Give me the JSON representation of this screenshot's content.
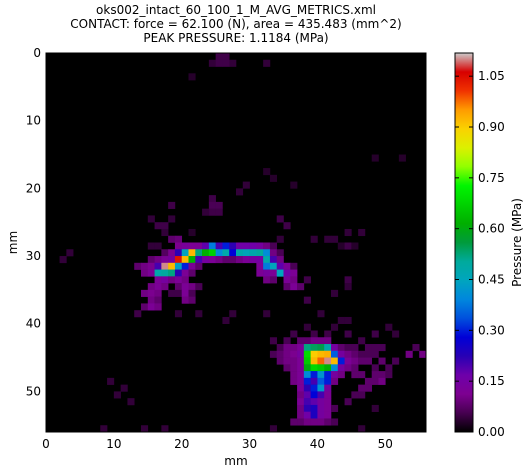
{
  "chart_data": {
    "type": "heatmap",
    "title_lines": [
      "oks002_intact_60_100_1_M_AVG_METRICS.xml",
      "CONTACT: force = 62.100 (N), area = 435.483 (mm^2)",
      "PEAK PRESSURE: 1.1184 (MPa)"
    ],
    "xlabel": "mm",
    "ylabel": "mm",
    "xlim": [
      0,
      56
    ],
    "ylim": [
      56,
      0
    ],
    "xticks": [
      0,
      10,
      20,
      30,
      40,
      50
    ],
    "yticks": [
      0,
      10,
      20,
      30,
      40,
      50
    ],
    "colorbar": {
      "label": "Pressure (MPa)",
      "min": 0.0,
      "max": 1.1184,
      "ticks": [
        "0.00",
        "0.15",
        "0.30",
        "0.45",
        "0.60",
        "0.75",
        "0.90",
        "1.05"
      ],
      "colormap": "nipy_spectral"
    },
    "background_color": "#000000",
    "cells": [
      [
        25,
        0,
        0.05
      ],
      [
        26,
        0,
        0.05
      ],
      [
        24,
        1,
        0.04
      ],
      [
        27,
        1,
        0.04
      ],
      [
        32,
        1,
        0.04
      ],
      [
        25,
        1,
        0.05
      ],
      [
        26,
        1,
        0.05
      ],
      [
        21,
        3,
        0.03
      ],
      [
        48,
        15,
        0.03
      ],
      [
        52,
        15,
        0.03
      ],
      [
        32,
        17,
        0.03
      ],
      [
        33,
        18,
        0.03
      ],
      [
        29,
        19,
        0.04
      ],
      [
        36,
        19,
        0.03
      ],
      [
        28,
        20,
        0.04
      ],
      [
        24,
        21,
        0.05
      ],
      [
        24,
        22,
        0.06
      ],
      [
        25,
        22,
        0.06
      ],
      [
        18,
        22,
        0.05
      ],
      [
        24,
        23,
        0.05
      ],
      [
        25,
        23,
        0.05
      ],
      [
        23,
        23,
        0.04
      ],
      [
        18,
        24,
        0.04
      ],
      [
        15,
        24,
        0.04
      ],
      [
        34,
        24,
        0.05
      ],
      [
        16,
        25,
        0.05
      ],
      [
        17,
        25,
        0.05
      ],
      [
        35,
        25,
        0.05
      ],
      [
        21,
        26,
        0.03
      ],
      [
        17,
        26,
        0.04
      ],
      [
        44,
        26,
        0.04
      ],
      [
        46,
        26,
        0.04
      ],
      [
        18,
        27,
        0.08
      ],
      [
        19,
        27,
        0.09
      ],
      [
        34,
        27,
        0.04
      ],
      [
        39,
        27,
        0.04
      ],
      [
        41,
        27,
        0.04
      ],
      [
        42,
        27,
        0.04
      ],
      [
        15,
        28,
        0.04
      ],
      [
        16,
        28,
        0.04
      ],
      [
        19,
        28,
        0.11
      ],
      [
        20,
        28,
        0.13
      ],
      [
        21,
        28,
        0.12
      ],
      [
        22,
        28,
        0.12
      ],
      [
        23,
        28,
        0.18
      ],
      [
        24,
        28,
        0.38
      ],
      [
        25,
        28,
        0.2
      ],
      [
        26,
        28,
        0.3
      ],
      [
        27,
        28,
        0.22
      ],
      [
        28,
        28,
        0.16
      ],
      [
        29,
        28,
        0.16
      ],
      [
        30,
        28,
        0.16
      ],
      [
        31,
        28,
        0.14
      ],
      [
        32,
        28,
        0.1
      ],
      [
        33,
        28,
        0.06
      ],
      [
        43,
        28,
        0.03
      ],
      [
        44,
        28,
        0.05
      ],
      [
        45,
        28,
        0.03
      ],
      [
        17,
        29,
        0.07
      ],
      [
        18,
        29,
        0.11
      ],
      [
        19,
        29,
        0.22
      ],
      [
        20,
        29,
        0.45
      ],
      [
        21,
        29,
        0.92
      ],
      [
        22,
        29,
        0.52
      ],
      [
        23,
        29,
        0.62
      ],
      [
        24,
        29,
        0.67
      ],
      [
        25,
        29,
        0.4
      ],
      [
        26,
        29,
        0.48
      ],
      [
        27,
        29,
        0.28
      ],
      [
        28,
        29,
        0.48
      ],
      [
        29,
        29,
        0.46
      ],
      [
        30,
        29,
        0.48
      ],
      [
        31,
        29,
        0.5
      ],
      [
        32,
        29,
        0.4
      ],
      [
        33,
        29,
        0.1
      ],
      [
        34,
        29,
        0.06
      ],
      [
        3,
        29,
        0.04
      ],
      [
        15,
        30,
        0.08
      ],
      [
        16,
        30,
        0.1
      ],
      [
        17,
        30,
        0.12
      ],
      [
        18,
        30,
        0.14
      ],
      [
        19,
        30,
        1.04
      ],
      [
        20,
        30,
        0.92
      ],
      [
        21,
        30,
        0.62
      ],
      [
        22,
        30,
        0.2
      ],
      [
        23,
        30,
        0.14
      ],
      [
        24,
        30,
        0.12
      ],
      [
        25,
        30,
        0.1
      ],
      [
        26,
        30,
        0.08
      ],
      [
        27,
        30,
        0.08
      ],
      [
        28,
        30,
        0.1
      ],
      [
        29,
        30,
        0.12
      ],
      [
        30,
        30,
        0.14
      ],
      [
        31,
        30,
        0.15
      ],
      [
        32,
        30,
        0.48
      ],
      [
        33,
        30,
        0.2
      ],
      [
        34,
        30,
        0.1
      ],
      [
        2,
        30,
        0.04
      ],
      [
        13,
        31,
        0.08
      ],
      [
        14,
        31,
        0.1
      ],
      [
        15,
        31,
        0.11
      ],
      [
        16,
        31,
        0.2
      ],
      [
        17,
        31,
        1.1
      ],
      [
        18,
        31,
        0.92
      ],
      [
        19,
        31,
        0.44
      ],
      [
        20,
        31,
        0.3
      ],
      [
        21,
        31,
        0.12
      ],
      [
        22,
        31,
        0.08
      ],
      [
        31,
        31,
        0.12
      ],
      [
        32,
        31,
        0.38
      ],
      [
        33,
        31,
        0.45
      ],
      [
        34,
        31,
        0.18
      ],
      [
        35,
        31,
        0.12
      ],
      [
        36,
        31,
        0.06
      ],
      [
        14,
        32,
        0.1
      ],
      [
        15,
        32,
        0.12
      ],
      [
        16,
        32,
        0.48
      ],
      [
        17,
        32,
        0.5
      ],
      [
        18,
        32,
        0.52
      ],
      [
        19,
        32,
        0.22
      ],
      [
        20,
        32,
        0.12
      ],
      [
        21,
        32,
        0.08
      ],
      [
        31,
        32,
        0.12
      ],
      [
        32,
        32,
        0.14
      ],
      [
        33,
        32,
        0.12
      ],
      [
        34,
        32,
        0.45
      ],
      [
        35,
        32,
        0.16
      ],
      [
        36,
        32,
        0.12
      ],
      [
        16,
        33,
        0.12
      ],
      [
        17,
        33,
        0.14
      ],
      [
        18,
        33,
        0.1
      ],
      [
        19,
        33,
        0.12
      ],
      [
        20,
        33,
        0.1
      ],
      [
        32,
        33,
        0.1
      ],
      [
        33,
        33,
        0.08
      ],
      [
        35,
        33,
        0.12
      ],
      [
        36,
        33,
        0.1
      ],
      [
        38,
        33,
        0.05
      ],
      [
        44,
        33,
        0.05
      ],
      [
        15,
        34,
        0.1
      ],
      [
        16,
        34,
        0.12
      ],
      [
        17,
        34,
        0.1
      ],
      [
        19,
        34,
        0.08
      ],
      [
        20,
        34,
        0.12
      ],
      [
        21,
        34,
        0.1
      ],
      [
        22,
        34,
        0.06
      ],
      [
        35,
        34,
        0.08
      ],
      [
        36,
        34,
        0.12
      ],
      [
        37,
        34,
        0.08
      ],
      [
        44,
        34,
        0.04
      ],
      [
        14,
        35,
        0.1
      ],
      [
        15,
        35,
        0.11
      ],
      [
        16,
        35,
        0.1
      ],
      [
        18,
        35,
        0.05
      ],
      [
        19,
        35,
        0.05
      ],
      [
        20,
        35,
        0.12
      ],
      [
        21,
        35,
        0.06
      ],
      [
        42,
        35,
        0.04
      ],
      [
        15,
        36,
        0.1
      ],
      [
        16,
        36,
        0.08
      ],
      [
        20,
        36,
        0.1
      ],
      [
        21,
        36,
        0.08
      ],
      [
        38,
        36,
        0.05
      ],
      [
        14,
        37,
        0.08
      ],
      [
        15,
        37,
        0.12
      ],
      [
        16,
        37,
        0.1
      ],
      [
        13,
        38,
        0.05
      ],
      [
        19,
        38,
        0.04
      ],
      [
        22,
        38,
        0.04
      ],
      [
        27,
        38,
        0.04
      ],
      [
        32,
        38,
        0.04
      ],
      [
        40,
        38,
        0.04
      ],
      [
        26,
        39,
        0.04
      ],
      [
        43,
        39,
        0.04
      ],
      [
        44,
        39,
        0.04
      ],
      [
        38,
        40,
        0.04
      ],
      [
        42,
        40,
        0.04
      ],
      [
        50,
        40,
        0.04
      ],
      [
        36,
        41,
        0.05
      ],
      [
        39,
        41,
        0.05
      ],
      [
        41,
        41,
        0.05
      ],
      [
        44,
        41,
        0.05
      ],
      [
        48,
        41,
        0.05
      ],
      [
        51,
        41,
        0.04
      ],
      [
        33,
        42,
        0.05
      ],
      [
        35,
        42,
        0.06
      ],
      [
        37,
        42,
        0.08
      ],
      [
        38,
        42,
        0.08
      ],
      [
        39,
        42,
        0.1
      ],
      [
        40,
        42,
        0.1
      ],
      [
        41,
        42,
        0.1
      ],
      [
        46,
        42,
        0.05
      ],
      [
        34,
        43,
        0.06
      ],
      [
        35,
        43,
        0.1
      ],
      [
        36,
        43,
        0.1
      ],
      [
        37,
        43,
        0.12
      ],
      [
        38,
        43,
        0.52
      ],
      [
        39,
        43,
        0.54
      ],
      [
        40,
        43,
        0.55
      ],
      [
        41,
        43,
        0.48
      ],
      [
        42,
        43,
        0.14
      ],
      [
        43,
        43,
        0.08
      ],
      [
        44,
        43,
        0.06
      ],
      [
        45,
        43,
        0.06
      ],
      [
        47,
        43,
        0.06
      ],
      [
        48,
        43,
        0.06
      ],
      [
        49,
        43,
        0.06
      ],
      [
        54,
        43,
        0.06
      ],
      [
        33,
        44,
        0.06
      ],
      [
        34,
        44,
        0.08
      ],
      [
        35,
        44,
        0.1
      ],
      [
        36,
        44,
        0.11
      ],
      [
        37,
        44,
        0.14
      ],
      [
        38,
        44,
        0.68
      ],
      [
        39,
        44,
        0.9
      ],
      [
        40,
        44,
        0.92
      ],
      [
        41,
        44,
        0.93
      ],
      [
        42,
        44,
        0.35
      ],
      [
        43,
        44,
        0.14
      ],
      [
        44,
        44,
        0.1
      ],
      [
        45,
        44,
        0.08
      ],
      [
        46,
        44,
        0.06
      ],
      [
        47,
        44,
        0.06
      ],
      [
        48,
        44,
        0.06
      ],
      [
        53,
        44,
        0.1
      ],
      [
        55,
        44,
        0.1
      ],
      [
        56,
        44,
        0.08
      ],
      [
        34,
        45,
        0.08
      ],
      [
        35,
        45,
        0.1
      ],
      [
        36,
        45,
        0.1
      ],
      [
        37,
        45,
        0.12
      ],
      [
        38,
        45,
        0.66
      ],
      [
        39,
        45,
        0.92
      ],
      [
        40,
        45,
        0.98
      ],
      [
        41,
        45,
        1.1
      ],
      [
        42,
        45,
        0.92
      ],
      [
        43,
        45,
        0.3
      ],
      [
        44,
        45,
        0.12
      ],
      [
        45,
        45,
        0.1
      ],
      [
        46,
        45,
        0.08
      ],
      [
        47,
        45,
        0.08
      ],
      [
        49,
        45,
        0.08
      ],
      [
        51,
        45,
        0.06
      ],
      [
        35,
        46,
        0.08
      ],
      [
        36,
        46,
        0.1
      ],
      [
        37,
        46,
        0.12
      ],
      [
        38,
        46,
        0.6
      ],
      [
        39,
        46,
        0.68
      ],
      [
        40,
        46,
        0.66
      ],
      [
        41,
        46,
        0.62
      ],
      [
        42,
        46,
        0.4
      ],
      [
        43,
        46,
        0.14
      ],
      [
        44,
        46,
        0.1
      ],
      [
        45,
        46,
        0.08
      ],
      [
        48,
        46,
        0.06
      ],
      [
        50,
        46,
        0.06
      ],
      [
        36,
        47,
        0.1
      ],
      [
        37,
        47,
        0.12
      ],
      [
        38,
        47,
        0.4
      ],
      [
        39,
        47,
        0.3
      ],
      [
        40,
        47,
        0.42
      ],
      [
        41,
        47,
        0.3
      ],
      [
        42,
        47,
        0.14
      ],
      [
        43,
        47,
        0.1
      ],
      [
        45,
        47,
        0.08
      ],
      [
        46,
        47,
        0.08
      ],
      [
        48,
        47,
        0.08
      ],
      [
        49,
        47,
        0.08
      ],
      [
        50,
        47,
        0.06
      ],
      [
        9,
        48,
        0.04
      ],
      [
        36,
        48,
        0.1
      ],
      [
        37,
        48,
        0.12
      ],
      [
        38,
        48,
        0.3
      ],
      [
        39,
        48,
        0.2
      ],
      [
        40,
        48,
        0.35
      ],
      [
        41,
        48,
        0.3
      ],
      [
        42,
        48,
        0.1
      ],
      [
        47,
        48,
        0.08
      ],
      [
        48,
        48,
        0.08
      ],
      [
        49,
        48,
        0.1
      ],
      [
        11,
        49,
        0.04
      ],
      [
        37,
        49,
        0.12
      ],
      [
        38,
        49,
        0.22
      ],
      [
        39,
        49,
        0.3
      ],
      [
        40,
        49,
        0.42
      ],
      [
        41,
        49,
        0.14
      ],
      [
        46,
        49,
        0.08
      ],
      [
        47,
        49,
        0.08
      ],
      [
        10,
        50,
        0.04
      ],
      [
        37,
        50,
        0.1
      ],
      [
        38,
        50,
        0.18
      ],
      [
        39,
        50,
        0.28
      ],
      [
        40,
        50,
        0.2
      ],
      [
        41,
        50,
        0.12
      ],
      [
        45,
        50,
        0.06
      ],
      [
        46,
        50,
        0.06
      ],
      [
        12,
        51,
        0.04
      ],
      [
        37,
        51,
        0.12
      ],
      [
        38,
        51,
        0.2
      ],
      [
        39,
        51,
        0.18
      ],
      [
        40,
        51,
        0.14
      ],
      [
        41,
        51,
        0.12
      ],
      [
        44,
        51,
        0.06
      ],
      [
        37,
        52,
        0.1
      ],
      [
        38,
        52,
        0.22
      ],
      [
        39,
        52,
        0.24
      ],
      [
        40,
        52,
        0.14
      ],
      [
        41,
        52,
        0.12
      ],
      [
        42,
        52,
        0.06
      ],
      [
        48,
        52,
        0.04
      ],
      [
        37,
        53,
        0.1
      ],
      [
        38,
        53,
        0.16
      ],
      [
        39,
        53,
        0.24
      ],
      [
        40,
        53,
        0.14
      ],
      [
        41,
        53,
        0.12
      ],
      [
        36,
        54,
        0.08
      ],
      [
        37,
        54,
        0.08
      ],
      [
        38,
        54,
        0.1
      ],
      [
        39,
        54,
        0.1
      ],
      [
        40,
        54,
        0.1
      ],
      [
        41,
        54,
        0.08
      ],
      [
        42,
        54,
        0.06
      ],
      [
        8,
        55,
        0.04
      ],
      [
        14,
        55,
        0.04
      ],
      [
        17,
        55,
        0.04
      ],
      [
        33,
        55,
        0.04
      ],
      [
        46,
        55,
        0.04
      ]
    ]
  }
}
